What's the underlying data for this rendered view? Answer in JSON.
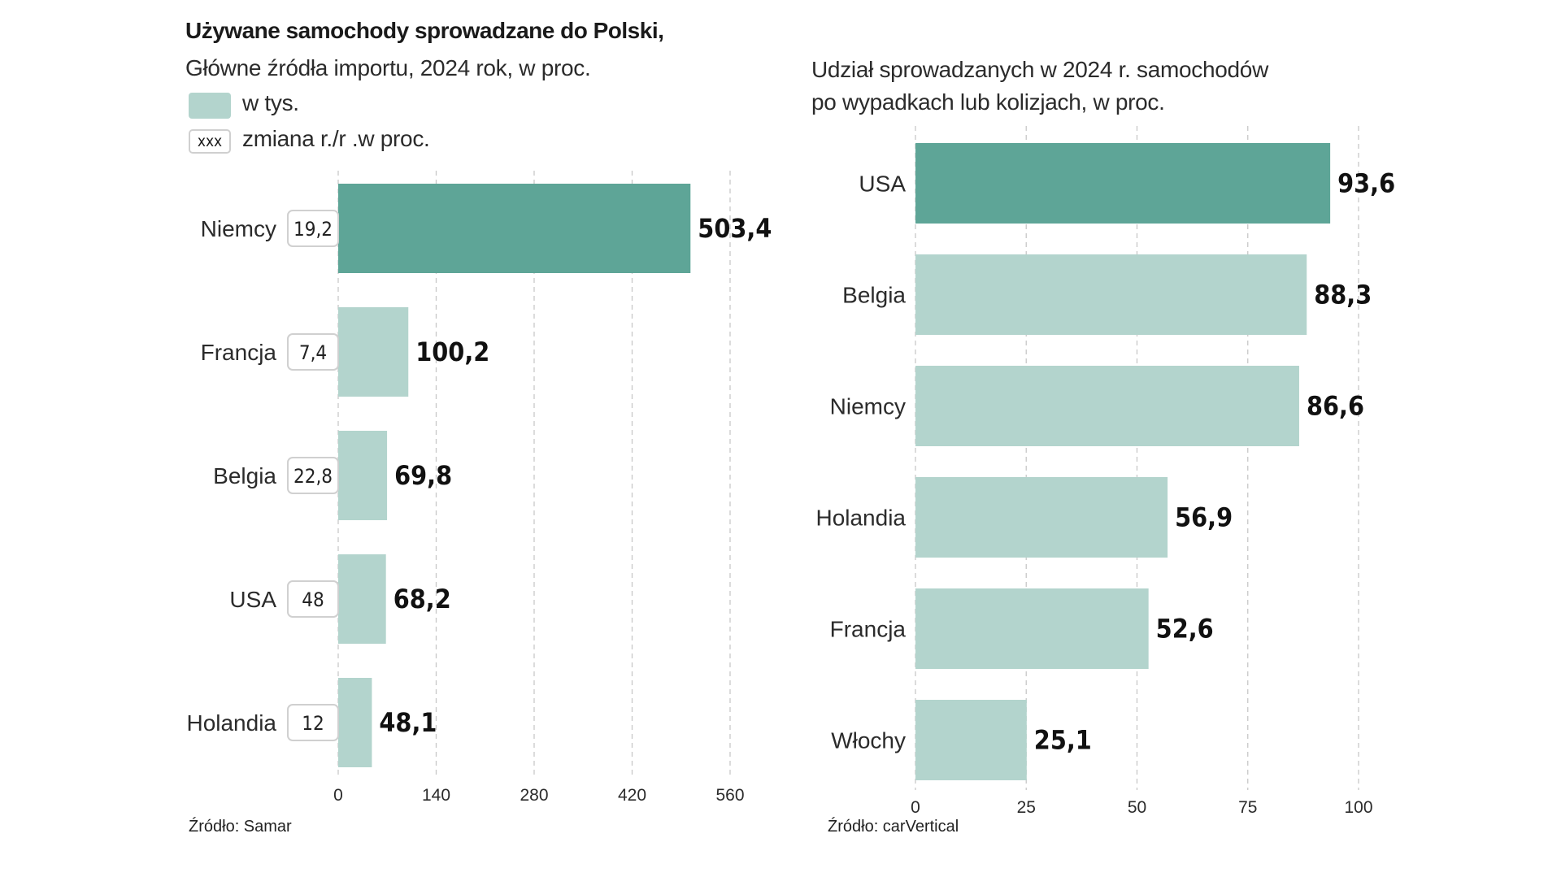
{
  "colors": {
    "highlight": "#5ea597",
    "bar": "#b3d4cd",
    "grid": "#c8c8c8",
    "box_border": "#d0d0d0"
  },
  "left": {
    "title": "Używane samochody sprowadzane do Polski,",
    "subtitle": "Główne źródła importu, 2024 rok, w proc.",
    "legend_value": "w tys.",
    "legend_box_label": "xxx",
    "legend_change": "zmiana r./r .w proc.",
    "source": "Źródło: Samar"
  },
  "right": {
    "subtitle_line1": "Udział sprowadzanych w 2024 r. samochodów",
    "subtitle_line2": "po wypadkach lub kolizjach, w proc.",
    "source": "Źródło: carVertical"
  },
  "chart_data": [
    {
      "type": "bar",
      "orientation": "horizontal",
      "title": "Używane samochody sprowadzane do Polski,",
      "subtitle": "Główne źródła importu, 2024 rok, w proc.",
      "categories": [
        "Niemcy",
        "Francja",
        "Belgia",
        "USA",
        "Holandia"
      ],
      "series": [
        {
          "name": "w tys.",
          "values": [
            503.4,
            100.2,
            69.8,
            68.2,
            48.1
          ],
          "labels": [
            "503,4",
            "100,2",
            "69,8",
            "68,2",
            "48,1"
          ]
        },
        {
          "name": "zmiana r./r .w proc.",
          "values": [
            19.2,
            7.4,
            22.8,
            48,
            12
          ],
          "labels": [
            "19,2",
            "7,4",
            "22,8",
            "48",
            "12"
          ]
        }
      ],
      "xlim": [
        0,
        560
      ],
      "xticks": [
        0,
        140,
        280,
        420,
        560
      ],
      "xtick_labels": [
        "0",
        "140",
        "280",
        "420",
        "560"
      ],
      "highlight_index": 0,
      "grid": "vertical dashed",
      "source": "Źródło: Samar"
    },
    {
      "type": "bar",
      "orientation": "horizontal",
      "title": "Udział sprowadzanych w 2024 r. samochodów po wypadkach lub kolizjach, w proc.",
      "categories": [
        "USA",
        "Belgia",
        "Niemcy",
        "Holandia",
        "Francja",
        "Włochy"
      ],
      "values": [
        93.6,
        88.3,
        86.6,
        56.9,
        52.6,
        25.1
      ],
      "labels": [
        "93,6",
        "88,3",
        "86,6",
        "56,9",
        "52,6",
        "25,1"
      ],
      "xlim": [
        0,
        100
      ],
      "xticks": [
        0,
        25,
        50,
        75,
        100
      ],
      "xtick_labels": [
        "0",
        "25",
        "50",
        "75",
        "100"
      ],
      "highlight_index": 0,
      "grid": "vertical dashed",
      "source": "Źródło: carVertical"
    }
  ]
}
